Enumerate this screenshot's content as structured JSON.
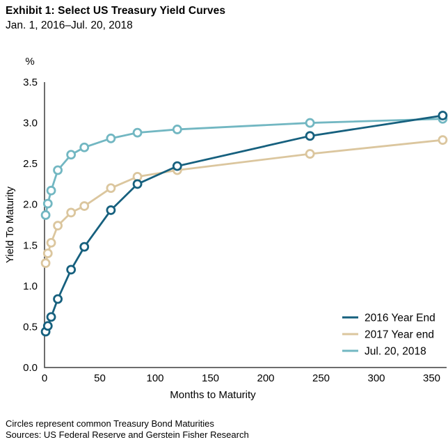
{
  "header": {
    "title": "Exhibit 1: Select US Treasury Yield Curves",
    "subtitle": "Jan. 1, 2016–Jul. 20, 2018"
  },
  "footer": {
    "note": "Circles represent common Treasury Bond Maturities",
    "sources": "Sources: US Federal Reserve and Gerstein Fisher Research"
  },
  "chart_data": {
    "type": "line",
    "title": "",
    "xlabel": "Months to Maturity",
    "ylabel": "Yield To Maturity",
    "y_unit_label": "%",
    "xlim": [
      0,
      363
    ],
    "ylim": [
      0,
      3.5
    ],
    "x_ticks": [
      0,
      50,
      100,
      150,
      200,
      250,
      300,
      350
    ],
    "y_ticks": [
      "0.0",
      "0.5",
      "1.0",
      "1.5",
      "2.0",
      "2.5",
      "3.0",
      "3.5"
    ],
    "grid": false,
    "legend_position": "lower-right",
    "marker": "open-circle",
    "axis_color": "#3d3d3d",
    "x": [
      1,
      3,
      6,
      12,
      24,
      36,
      60,
      84,
      120,
      240,
      360
    ],
    "series": [
      {
        "name": "2016 Year End",
        "color": "#16607E",
        "values": [
          0.44,
          0.51,
          0.62,
          0.84,
          1.2,
          1.48,
          1.93,
          2.25,
          2.47,
          2.84,
          3.09
        ]
      },
      {
        "name": "2017 Year end",
        "color": "#DBC69E",
        "values": [
          1.28,
          1.4,
          1.53,
          1.74,
          1.9,
          1.98,
          2.2,
          2.34,
          2.42,
          2.62,
          2.79
        ]
      },
      {
        "name": "Jul. 20, 2018",
        "color": "#72B7C2",
        "values": [
          1.87,
          2.01,
          2.17,
          2.42,
          2.61,
          2.7,
          2.81,
          2.88,
          2.92,
          3.0,
          3.05
        ]
      }
    ]
  }
}
